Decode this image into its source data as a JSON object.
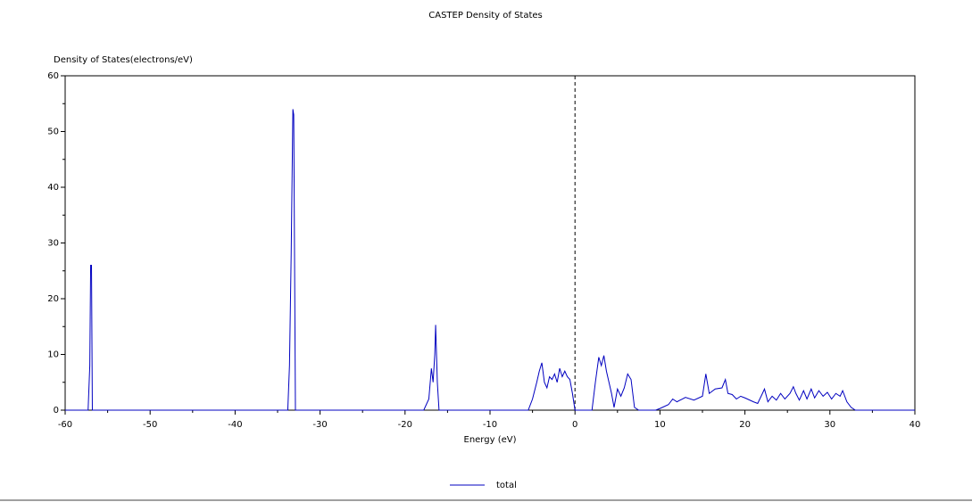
{
  "chart_data": {
    "type": "line",
    "title": "CASTEP Density of States",
    "ylabel": "Density of States(electrons/eV)",
    "xlabel": "Energy (eV)",
    "xlim": [
      -60,
      40
    ],
    "ylim": [
      0,
      60
    ],
    "xticks": [
      -60,
      -50,
      -40,
      -30,
      -20,
      -10,
      0,
      10,
      20,
      30,
      40
    ],
    "yticks": [
      0,
      10,
      20,
      30,
      40,
      50,
      60
    ],
    "x_minor_ticks": [
      -55,
      -45,
      -35,
      -25,
      -15,
      -5,
      5,
      15,
      25,
      35
    ],
    "y_minor_ticks": [
      5,
      15,
      25,
      35,
      45,
      55
    ],
    "fermi_level": 0,
    "legend": "bottom",
    "series": [
      {
        "name": "total",
        "color": "#0000c0",
        "x": [
          -60,
          -57.3,
          -57.1,
          -57.0,
          -56.9,
          -56.8,
          -33.8,
          -33.6,
          -33.4,
          -33.2,
          -33.1,
          -32.9,
          -17.8,
          -17.2,
          -16.9,
          -16.7,
          -16.5,
          -16.4,
          -16.2,
          -16.0,
          -5.5,
          -5,
          -4.5,
          -4.2,
          -3.9,
          -3.6,
          -3.3,
          -3,
          -2.7,
          -2.4,
          -2.1,
          -1.8,
          -1.5,
          -1.2,
          -0.9,
          -0.6,
          -0.3,
          0,
          2,
          2.4,
          2.8,
          3.1,
          3.4,
          3.7,
          4,
          4.3,
          4.6,
          5,
          5.4,
          5.8,
          6.2,
          6.6,
          7,
          7.5,
          9.5,
          10,
          11,
          11.5,
          12,
          13,
          14,
          15,
          15.4,
          15.8,
          16.5,
          17.3,
          17.7,
          18,
          18.5,
          19,
          19.5,
          20,
          21,
          21.5,
          22,
          22.3,
          22.7,
          23.2,
          23.7,
          24.2,
          24.7,
          25.3,
          25.7,
          26,
          26.4,
          26.9,
          27.3,
          27.8,
          28.2,
          28.7,
          29.2,
          29.7,
          30.2,
          30.7,
          31.2,
          31.5,
          32,
          32.5,
          33,
          40
        ],
        "values": [
          0,
          0,
          8,
          26,
          26,
          0,
          0,
          8,
          28,
          54,
          53,
          0,
          0,
          2,
          7.5,
          5,
          10,
          15.3,
          5,
          0,
          0,
          2,
          5,
          7,
          8.5,
          5,
          4,
          6,
          5.5,
          6.5,
          5,
          7.5,
          6,
          7,
          6,
          5.5,
          3,
          0,
          0,
          5,
          9.5,
          8,
          9.8,
          7,
          5,
          3,
          0.5,
          3.8,
          2.5,
          4,
          6.5,
          5.5,
          0.5,
          0,
          0,
          0.3,
          1,
          2,
          1.5,
          2.3,
          1.8,
          2.5,
          6.5,
          3,
          3.8,
          4,
          5.5,
          3,
          2.8,
          2,
          2.5,
          2.2,
          1.5,
          1.2,
          2.8,
          3.8,
          1.5,
          2.5,
          1.8,
          3,
          2,
          3,
          4.2,
          3,
          1.8,
          3.5,
          2,
          3.8,
          2.2,
          3.5,
          2.5,
          3.2,
          2,
          3,
          2.5,
          3.5,
          1.5,
          0.5,
          0,
          0
        ]
      }
    ]
  }
}
